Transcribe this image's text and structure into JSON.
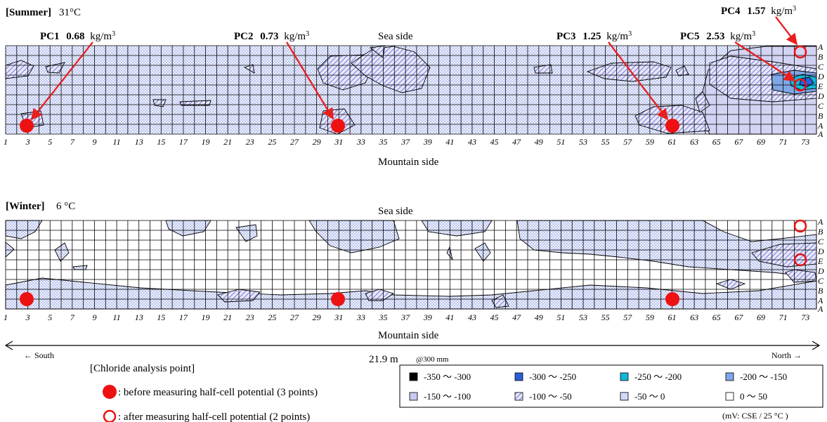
{
  "summer": {
    "season": "[Summer]",
    "temp": "31°C",
    "sea_label": "Sea side",
    "mountain_label": "Mountain side",
    "pc_labels": [
      {
        "id": "PC1",
        "value": "0.68",
        "unit": "kg/m",
        "sup": "3"
      },
      {
        "id": "PC2",
        "value": "0.73",
        "unit": "kg/m",
        "sup": "3"
      },
      {
        "id": "PC3",
        "value": "1.25",
        "unit": "kg/m",
        "sup": "3"
      },
      {
        "id": "PC4",
        "value": "1.57",
        "unit": "kg/m",
        "sup": "3"
      },
      {
        "id": "PC5",
        "value": "2.53",
        "unit": "kg/m",
        "sup": "3"
      }
    ]
  },
  "winter": {
    "season": "[Winter]",
    "temp": "6 °C",
    "sea_label": "Sea side",
    "mountain_label": "Mountain side"
  },
  "axis": {
    "x_ticks": [
      "1",
      "3",
      "5",
      "7",
      "9",
      "11",
      "13",
      "15",
      "17",
      "19",
      "21",
      "23",
      "25",
      "27",
      "29",
      "31",
      "33",
      "35",
      "37",
      "39",
      "41",
      "43",
      "45",
      "47",
      "49",
      "51",
      "53",
      "55",
      "57",
      "59",
      "61",
      "63",
      "65",
      "67",
      "69",
      "71",
      "73"
    ],
    "row_labels": [
      "A",
      "B",
      "C",
      "D",
      "E",
      "D",
      "C",
      "B",
      "A"
    ]
  },
  "scale": {
    "south": "← South",
    "north": "North →",
    "length": "21.9 m",
    "pitch": "@300 mm"
  },
  "chloride_legend": {
    "title": "[Chloride analysis point]",
    "before": ": before measuring half-cell potential (3 points)",
    "after": ": after measuring half-cell potential (2 points)"
  },
  "potential_legend": {
    "items": [
      {
        "label": "-350 〜 -300",
        "color": "#000000",
        "pattern": "solid"
      },
      {
        "label": "-300 〜 -250",
        "color": "#2b5fd9",
        "pattern": "solid"
      },
      {
        "label": "-250 〜 -200",
        "color": "#13b8d8",
        "pattern": "solid"
      },
      {
        "label": "-200 〜 -150",
        "color": "#7fa6e6",
        "pattern": "solid"
      },
      {
        "label": "-150 〜 -100",
        "color": "#c8c8f0",
        "pattern": "solid"
      },
      {
        "label": "-100 〜 -50",
        "color": "#5b5fd0",
        "pattern": "hatch"
      },
      {
        "label": "-50 〜 0",
        "color": "#8ea2e8",
        "pattern": "dots"
      },
      {
        "label": "0 〜 50",
        "color": "#ffffff",
        "pattern": "solid"
      }
    ],
    "unit_note": "(mV: CSE / 25 °C )"
  },
  "colors": {
    "marker_red": "#ee1111",
    "arrow_red": "#e81f1f",
    "grid_line": "#000000"
  }
}
